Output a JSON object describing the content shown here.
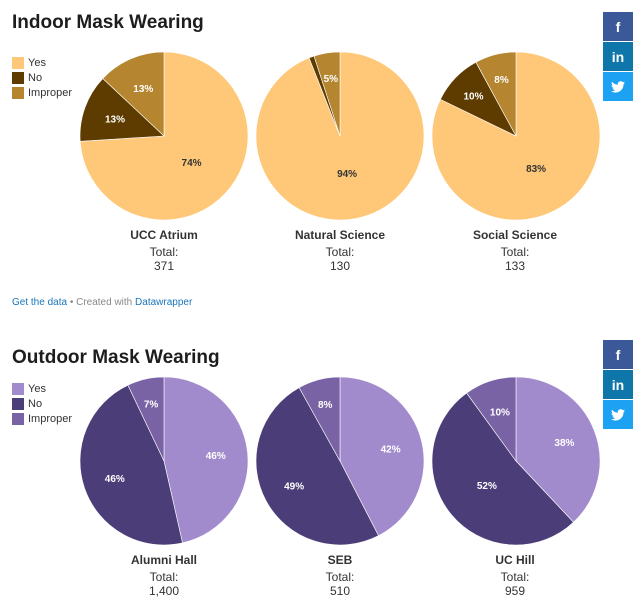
{
  "indoor": {
    "title": "Indoor Mask Wearing",
    "legend": [
      {
        "label": "Yes",
        "color": "#ffc879"
      },
      {
        "label": "No",
        "color": "#5e3c00"
      },
      {
        "label": "Improper",
        "color": "#b5852f"
      }
    ]
  },
  "outdoor": {
    "title": "Outdoor Mask Wearing",
    "legend": [
      {
        "label": "Yes",
        "color": "#a28bcc"
      },
      {
        "label": "No",
        "color": "#4b3d78"
      },
      {
        "label": "Improper",
        "color": "#7a63a5"
      }
    ]
  },
  "total_label": "Total:",
  "footer": {
    "get_data": "Get the data",
    "separator": " • Created with ",
    "datawrapper": "Datawrapper"
  },
  "share": {
    "facebook": "f",
    "linkedin": "in",
    "twitter": "t"
  },
  "chart_data": [
    {
      "type": "pie",
      "name": "UCC Atrium",
      "total": "371",
      "slices": [
        {
          "label": "Yes",
          "value": 74
        },
        {
          "label": "No",
          "value": 13
        },
        {
          "label": "Improper",
          "value": 13
        }
      ],
      "value_labels": [
        "74%",
        "13%",
        "13%"
      ]
    },
    {
      "type": "pie",
      "name": "Natural Science",
      "total": "130",
      "slices": [
        {
          "label": "Yes",
          "value": 94
        },
        {
          "label": "No",
          "value": 1
        },
        {
          "label": "Improper",
          "value": 5
        }
      ],
      "value_labels": [
        "94%",
        "",
        "5%"
      ]
    },
    {
      "type": "pie",
      "name": "Social Science",
      "total": "133",
      "slices": [
        {
          "label": "Yes",
          "value": 83
        },
        {
          "label": "No",
          "value": 10
        },
        {
          "label": "Improper",
          "value": 8
        }
      ],
      "value_labels": [
        "83%",
        "10%",
        "8%"
      ]
    },
    {
      "type": "pie",
      "name": "Alumni Hall",
      "total": "1,400",
      "slices": [
        {
          "label": "Yes",
          "value": 46
        },
        {
          "label": "No",
          "value": 46
        },
        {
          "label": "Improper",
          "value": 7
        }
      ],
      "value_labels": [
        "46%",
        "46%",
        "7%"
      ]
    },
    {
      "type": "pie",
      "name": "SEB",
      "total": "510",
      "slices": [
        {
          "label": "Yes",
          "value": 42
        },
        {
          "label": "No",
          "value": 49
        },
        {
          "label": "Improper",
          "value": 8
        }
      ],
      "value_labels": [
        "42%",
        "49%",
        "8%"
      ]
    },
    {
      "type": "pie",
      "name": "UC Hill",
      "total": "959",
      "slices": [
        {
          "label": "Yes",
          "value": 38
        },
        {
          "label": "No",
          "value": 52
        },
        {
          "label": "Improper",
          "value": 10
        }
      ],
      "value_labels": [
        "38%",
        "52%",
        "10%"
      ]
    }
  ]
}
